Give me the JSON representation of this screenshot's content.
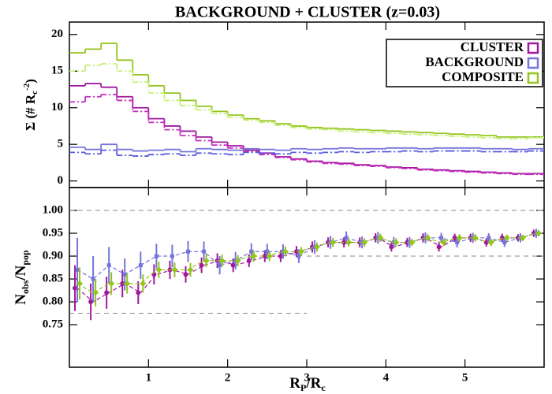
{
  "chart_data": [
    {
      "type": "histogram",
      "title": "BACKGROUND + CLUSTER (z=0.03)",
      "ylabel": [
        "Σ (# R",
        "c",
        "-2",
        ")"
      ],
      "bins": [
        0,
        0.2,
        0.4,
        0.6,
        0.8,
        1.0,
        1.2,
        1.4,
        1.6,
        1.8,
        2.0,
        2.2,
        2.4,
        2.6,
        2.8,
        3.0,
        3.2,
        3.4,
        3.6,
        3.8,
        4.0,
        4.2,
        4.4,
        4.6,
        4.8,
        5.0,
        5.2,
        5.4,
        5.6,
        5.8,
        6.0
      ],
      "xlim": [
        0,
        6
      ],
      "xticks": [
        1,
        2,
        3,
        4,
        5
      ],
      "ylim": [
        -0.9,
        21.7
      ],
      "yticks": [
        0,
        5,
        10,
        15,
        20
      ],
      "legend": "upper right",
      "series": [
        {
          "name": "CLUSTER",
          "color": "#a0189c",
          "dashed_color": "#c62cc0",
          "values": [
            13,
            13.3,
            12.8,
            11.5,
            10,
            8.5,
            7.5,
            6.8,
            6,
            5.3,
            4.8,
            4.2,
            3.8,
            3.3,
            3,
            2.7,
            2.5,
            2.4,
            2.2,
            2.1,
            1.9,
            1.8,
            1.6,
            1.5,
            1.4,
            1.3,
            1.2,
            1.1,
            1.0,
            1.0
          ],
          "dashed_values": [
            10.8,
            11.5,
            11.8,
            11,
            9.5,
            8,
            7,
            6.2,
            5.5,
            4.9,
            4.5,
            4,
            3.6,
            3.2,
            2.9,
            2.6,
            2.4,
            2.3,
            2.1,
            2.0,
            1.8,
            1.7,
            1.5,
            1.4,
            1.3,
            1.2,
            1.1,
            1.0,
            0.9,
            0.9
          ]
        },
        {
          "name": "BACKGROUND",
          "color": "#7474dc",
          "dashed_color": "#5a5ae0",
          "values": [
            4.6,
            4.3,
            5.0,
            4.3,
            4.1,
            4.2,
            4.3,
            4.0,
            4.4,
            4.3,
            4.2,
            4.4,
            4.3,
            4.2,
            4.4,
            4.3,
            4.4,
            4.5,
            4.4,
            4.4,
            4.5,
            4.5,
            4.4,
            4.5,
            4.5,
            4.5,
            4.4,
            4.4,
            4.3,
            4.4
          ],
          "dashed_values": [
            3.9,
            3.7,
            4.2,
            3.5,
            3.4,
            3.6,
            3.7,
            3.5,
            3.8,
            3.7,
            3.6,
            3.9,
            3.8,
            3.7,
            3.9,
            3.8,
            3.9,
            4.0,
            3.9,
            4.0,
            4.0,
            4.1,
            4.0,
            4.1,
            4.1,
            4.1,
            4.0,
            4.0,
            4.0,
            4.1
          ]
        },
        {
          "name": "COMPOSITE",
          "color": "#94c41e",
          "dashed_color": "#c8f07a",
          "values": [
            17.5,
            18,
            18.8,
            16.5,
            14.5,
            13,
            12,
            11,
            10.2,
            9.5,
            9,
            8.5,
            8.2,
            7.8,
            7.5,
            7.3,
            7.2,
            7.1,
            7.0,
            6.9,
            6.8,
            6.7,
            6.6,
            6.5,
            6.4,
            6.3,
            6.2,
            6.0,
            6.0,
            6.0
          ],
          "dashed_values": [
            15,
            15.8,
            16,
            15,
            13.5,
            12,
            11,
            10.3,
            9.7,
            9.2,
            8.7,
            8.3,
            8,
            7.6,
            7.3,
            7.1,
            7,
            6.8,
            6.7,
            6.6,
            6.5,
            6.4,
            6.3,
            6.2,
            6.1,
            6.0,
            5.9,
            5.8,
            5.8,
            5.9
          ]
        }
      ]
    },
    {
      "type": "errorbar",
      "ylabel": [
        "N",
        "obs",
        "/N",
        "pop"
      ],
      "xlabel": [
        "R",
        "P",
        "/R",
        "c"
      ],
      "x": [
        0.1,
        0.3,
        0.5,
        0.7,
        0.9,
        1.1,
        1.3,
        1.5,
        1.7,
        1.9,
        2.1,
        2.3,
        2.5,
        2.7,
        2.9,
        3.1,
        3.3,
        3.5,
        3.7,
        3.9,
        4.1,
        4.3,
        4.5,
        4.7,
        4.9,
        5.1,
        5.3,
        5.5,
        5.7,
        5.9
      ],
      "xlim": [
        0,
        6
      ],
      "xticks": [
        1,
        2,
        3,
        4,
        5
      ],
      "ylim": [
        0.657,
        1.05
      ],
      "yticks": [
        {
          "value": 0.75,
          "label": "0.75"
        },
        {
          "value": 0.8,
          "label": "0.80"
        },
        {
          "value": 0.85,
          "label": "0.85"
        },
        {
          "value": 0.9,
          "label": "0.90"
        },
        {
          "value": 0.95,
          "label": "0.95"
        },
        {
          "value": 1.0,
          "label": "1.00"
        }
      ],
      "reference_lines": [
        {
          "y": 1.0,
          "x": [
            0,
            6
          ]
        },
        {
          "y": 0.9,
          "x": [
            3,
            6
          ]
        },
        {
          "y": 0.775,
          "x": [
            0,
            3
          ]
        }
      ],
      "series": [
        {
          "color": "#a0189c",
          "marker": "circle",
          "values": [
            0.83,
            0.8,
            0.82,
            0.84,
            0.82,
            0.86,
            0.87,
            0.86,
            0.88,
            0.89,
            0.88,
            0.89,
            0.9,
            0.9,
            0.91,
            0.92,
            0.93,
            0.93,
            0.93,
            0.94,
            0.92,
            0.93,
            0.94,
            0.92,
            0.94,
            0.94,
            0.93,
            0.94,
            0.94,
            0.95
          ],
          "errors": [
            0.05,
            0.04,
            0.035,
            0.03,
            0.025,
            0.022,
            0.02,
            0.018,
            0.017,
            0.016,
            0.015,
            0.014,
            0.013,
            0.013,
            0.012,
            0.012,
            0.011,
            0.011,
            0.011,
            0.01,
            0.01,
            0.01,
            0.01,
            0.01,
            0.009,
            0.009,
            0.009,
            0.009,
            0.008,
            0.008
          ]
        },
        {
          "color": "#7474dc",
          "marker": "square",
          "values": [
            0.87,
            0.85,
            0.88,
            0.86,
            0.88,
            0.9,
            0.9,
            0.91,
            0.91,
            0.88,
            0.89,
            0.91,
            0.91,
            0.91,
            0.9,
            0.92,
            0.93,
            0.94,
            0.93,
            0.94,
            0.93,
            0.93,
            0.94,
            0.94,
            0.93,
            0.94,
            0.94,
            0.93,
            0.94,
            0.95
          ],
          "errors": [
            0.07,
            0.05,
            0.04,
            0.035,
            0.03,
            0.027,
            0.025,
            0.023,
            0.022,
            0.02,
            0.019,
            0.018,
            0.017,
            0.016,
            0.015,
            0.015,
            0.014,
            0.014,
            0.013,
            0.013,
            0.012,
            0.012,
            0.012,
            0.011,
            0.011,
            0.011,
            0.01,
            0.01,
            0.01,
            0.01
          ]
        },
        {
          "color": "#94c41e",
          "marker": "diamond",
          "values": [
            0.84,
            0.82,
            0.84,
            0.84,
            0.84,
            0.87,
            0.87,
            0.87,
            0.89,
            0.89,
            0.89,
            0.9,
            0.9,
            0.91,
            0.91,
            0.92,
            0.93,
            0.93,
            0.93,
            0.94,
            0.93,
            0.93,
            0.94,
            0.93,
            0.94,
            0.94,
            0.93,
            0.94,
            0.94,
            0.95
          ],
          "errors": [
            0.035,
            0.03,
            0.025,
            0.022,
            0.02,
            0.018,
            0.016,
            0.015,
            0.014,
            0.013,
            0.012,
            0.012,
            0.011,
            0.011,
            0.01,
            0.01,
            0.01,
            0.009,
            0.009,
            0.009,
            0.009,
            0.008,
            0.008,
            0.008,
            0.008,
            0.008,
            0.008,
            0.007,
            0.007,
            0.007
          ]
        }
      ]
    }
  ]
}
